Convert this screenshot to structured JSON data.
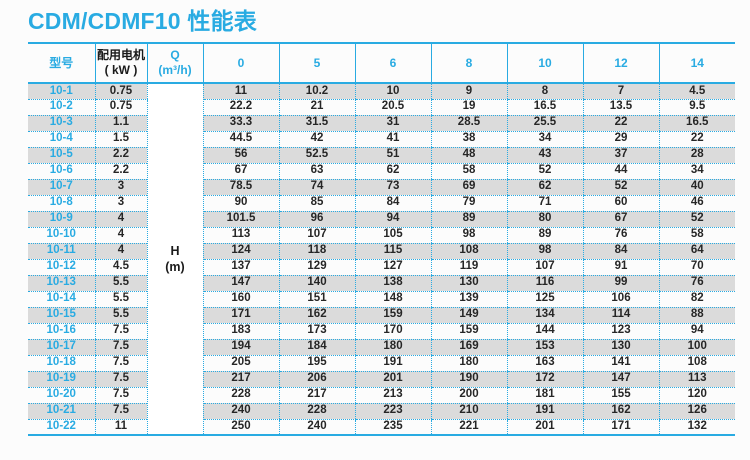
{
  "title": "CDM/CDMF10 性能表",
  "colors": {
    "accent": "#29abe2",
    "stripe": "#dbdbdb",
    "text": "#262626"
  },
  "table": {
    "header": {
      "model": "型号",
      "motor_line1": "配用电机",
      "motor_line2": "( kW )",
      "q_line1": "Q",
      "q_line2": "(m³/h)",
      "flow_columns": [
        "0",
        "5",
        "6",
        "8",
        "10",
        "12",
        "14"
      ]
    },
    "h_label_line1": "H",
    "h_label_line2": "(m)",
    "rows": [
      {
        "model": "10-1",
        "kw": "0.75",
        "values": [
          "11",
          "10.2",
          "10",
          "9",
          "8",
          "7",
          "4.5"
        ]
      },
      {
        "model": "10-2",
        "kw": "0.75",
        "values": [
          "22.2",
          "21",
          "20.5",
          "19",
          "16.5",
          "13.5",
          "9.5"
        ]
      },
      {
        "model": "10-3",
        "kw": "1.1",
        "values": [
          "33.3",
          "31.5",
          "31",
          "28.5",
          "25.5",
          "22",
          "16.5"
        ]
      },
      {
        "model": "10-4",
        "kw": "1.5",
        "values": [
          "44.5",
          "42",
          "41",
          "38",
          "34",
          "29",
          "22"
        ]
      },
      {
        "model": "10-5",
        "kw": "2.2",
        "values": [
          "56",
          "52.5",
          "51",
          "48",
          "43",
          "37",
          "28"
        ]
      },
      {
        "model": "10-6",
        "kw": "2.2",
        "values": [
          "67",
          "63",
          "62",
          "58",
          "52",
          "44",
          "34"
        ]
      },
      {
        "model": "10-7",
        "kw": "3",
        "values": [
          "78.5",
          "74",
          "73",
          "69",
          "62",
          "52",
          "40"
        ]
      },
      {
        "model": "10-8",
        "kw": "3",
        "values": [
          "90",
          "85",
          "84",
          "79",
          "71",
          "60",
          "46"
        ]
      },
      {
        "model": "10-9",
        "kw": "4",
        "values": [
          "101.5",
          "96",
          "94",
          "89",
          "80",
          "67",
          "52"
        ]
      },
      {
        "model": "10-10",
        "kw": "4",
        "values": [
          "113",
          "107",
          "105",
          "98",
          "89",
          "76",
          "58"
        ]
      },
      {
        "model": "10-11",
        "kw": "4",
        "values": [
          "124",
          "118",
          "115",
          "108",
          "98",
          "84",
          "64"
        ]
      },
      {
        "model": "10-12",
        "kw": "4.5",
        "values": [
          "137",
          "129",
          "127",
          "119",
          "107",
          "91",
          "70"
        ]
      },
      {
        "model": "10-13",
        "kw": "5.5",
        "values": [
          "147",
          "140",
          "138",
          "130",
          "116",
          "99",
          "76"
        ]
      },
      {
        "model": "10-14",
        "kw": "5.5",
        "values": [
          "160",
          "151",
          "148",
          "139",
          "125",
          "106",
          "82"
        ]
      },
      {
        "model": "10-15",
        "kw": "5.5",
        "values": [
          "171",
          "162",
          "159",
          "149",
          "134",
          "114",
          "88"
        ]
      },
      {
        "model": "10-16",
        "kw": "7.5",
        "values": [
          "183",
          "173",
          "170",
          "159",
          "144",
          "123",
          "94"
        ]
      },
      {
        "model": "10-17",
        "kw": "7.5",
        "values": [
          "194",
          "184",
          "180",
          "169",
          "153",
          "130",
          "100"
        ]
      },
      {
        "model": "10-18",
        "kw": "7.5",
        "values": [
          "205",
          "195",
          "191",
          "180",
          "163",
          "141",
          "108"
        ]
      },
      {
        "model": "10-19",
        "kw": "7.5",
        "values": [
          "217",
          "206",
          "201",
          "190",
          "172",
          "147",
          "113"
        ]
      },
      {
        "model": "10-20",
        "kw": "7.5",
        "values": [
          "228",
          "217",
          "213",
          "200",
          "181",
          "155",
          "120"
        ]
      },
      {
        "model": "10-21",
        "kw": "7.5",
        "values": [
          "240",
          "228",
          "223",
          "210",
          "191",
          "162",
          "126"
        ]
      },
      {
        "model": "10-22",
        "kw": "11",
        "values": [
          "250",
          "240",
          "235",
          "221",
          "201",
          "171",
          "132"
        ]
      }
    ]
  }
}
